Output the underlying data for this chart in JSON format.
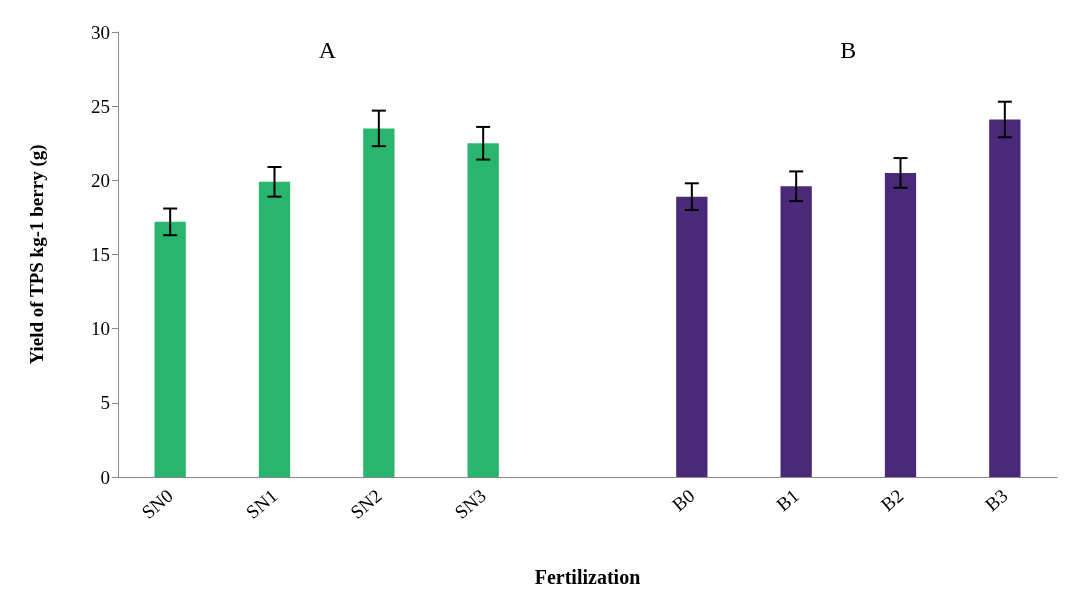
{
  "chart_data": {
    "type": "bar",
    "xlabel": "Fertilization",
    "ylabel": "Yield of TPS kg-1 berry (g)",
    "categories": [
      "SN0",
      "SN1",
      "SN2",
      "SN3",
      null,
      "B0",
      "B1",
      "B2",
      "B3"
    ],
    "values": [
      17.2,
      19.9,
      23.5,
      22.5,
      null,
      18.9,
      19.6,
      20.5,
      24.1
    ],
    "errors": [
      0.9,
      1.0,
      1.2,
      1.1,
      null,
      0.9,
      1.0,
      1.0,
      1.2
    ],
    "colors": [
      "#2ab56e",
      "#2ab56e",
      "#2ab56e",
      "#2ab56e",
      null,
      "#4a2a78",
      "#4a2a78",
      "#4a2a78",
      "#4a2a78"
    ],
    "ylim": [
      0,
      30
    ],
    "yticks": [
      0,
      5,
      10,
      15,
      20,
      25,
      30
    ],
    "grid": false,
    "annotations": [
      "A",
      "B"
    ]
  }
}
